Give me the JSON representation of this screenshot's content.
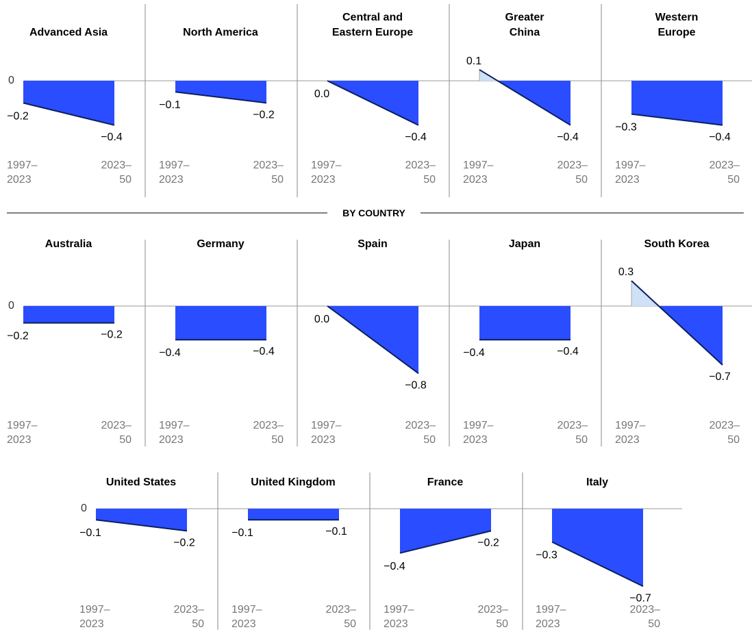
{
  "section_label": "BY COUNTRY",
  "zero_label": "0",
  "x_labels": [
    [
      "1997–",
      "2023"
    ],
    [
      "2023–",
      "50"
    ]
  ],
  "colors": {
    "negative": "#2a4dff",
    "positive": "#cfe0f7",
    "line": "#0b1f5c",
    "axis": "#999999",
    "divider": "#888888"
  },
  "chart_data": [
    {
      "type": "area",
      "group": "regions",
      "x": [
        "1997–2023",
        "2023–50"
      ],
      "panels": [
        {
          "title": [
            "Advanced Asia"
          ],
          "values": [
            -0.2,
            -0.4
          ]
        },
        {
          "title": [
            "North America"
          ],
          "values": [
            -0.1,
            -0.2
          ]
        },
        {
          "title": [
            "Central and",
            "Eastern Europe"
          ],
          "values": [
            0.0,
            -0.4
          ]
        },
        {
          "title": [
            "Greater",
            "China"
          ],
          "values": [
            0.1,
            -0.4
          ]
        },
        {
          "title": [
            "Western",
            "Europe"
          ],
          "values": [
            -0.3,
            -0.4
          ]
        }
      ]
    },
    {
      "type": "area",
      "group": "countries",
      "x": [
        "1997–2023",
        "2023–50"
      ],
      "panels": [
        {
          "title": [
            "Australia"
          ],
          "values": [
            -0.2,
            -0.2
          ]
        },
        {
          "title": [
            "Germany"
          ],
          "values": [
            -0.4,
            -0.4
          ]
        },
        {
          "title": [
            "Spain"
          ],
          "values": [
            0.0,
            -0.8
          ]
        },
        {
          "title": [
            "Japan"
          ],
          "values": [
            -0.4,
            -0.4
          ]
        },
        {
          "title": [
            "South Korea"
          ],
          "values": [
            0.3,
            -0.7
          ]
        },
        {
          "title": [
            "United States"
          ],
          "values": [
            -0.1,
            -0.2
          ]
        },
        {
          "title": [
            "United Kingdom"
          ],
          "values": [
            -0.1,
            -0.1
          ]
        },
        {
          "title": [
            "France"
          ],
          "values": [
            -0.4,
            -0.2
          ]
        },
        {
          "title": [
            "Italy"
          ],
          "values": [
            -0.3,
            -0.7
          ]
        }
      ]
    }
  ]
}
